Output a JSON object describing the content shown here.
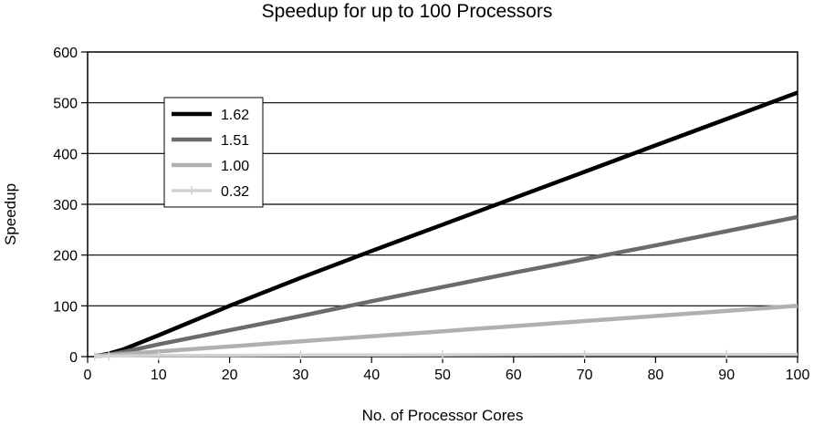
{
  "chart_data": {
    "type": "line",
    "title": "Speedup for up to 100 Processors",
    "xlabel": "No. of Processor Cores",
    "ylabel": "Speedup",
    "xlim": [
      0,
      100
    ],
    "ylim": [
      0,
      600
    ],
    "x_ticks": [
      0,
      10,
      20,
      30,
      40,
      50,
      60,
      70,
      80,
      90,
      100
    ],
    "y_ticks": [
      0,
      100,
      200,
      300,
      400,
      500,
      600
    ],
    "grid": "horizontal",
    "legend_position": "top-left",
    "x": [
      1,
      2,
      3,
      5,
      10,
      20,
      30,
      40,
      50,
      60,
      70,
      80,
      90,
      100
    ],
    "series": [
      {
        "name": "1.62",
        "color": "#000000",
        "values": [
          1,
          3,
          6,
          14,
          42,
          100,
          155,
          208,
          260,
          312,
          364,
          416,
          468,
          520
        ]
      },
      {
        "name": "1.51",
        "color": "#6b6b6b",
        "values": [
          1,
          2,
          4,
          9,
          24,
          52,
          80,
          109,
          137,
          165,
          192,
          219,
          247,
          275
        ]
      },
      {
        "name": "1.00",
        "color": "#b0b0b0",
        "values": [
          1,
          2,
          3,
          5,
          10,
          20,
          30,
          40,
          50,
          60,
          70,
          80,
          90,
          100
        ]
      },
      {
        "name": "0.32",
        "color": "#d2d2d2",
        "values": [
          1,
          1.1,
          1.2,
          1.5,
          2.0,
          2.6,
          3.0,
          3.3,
          3.5,
          3.7,
          3.9,
          4.1,
          4.2,
          4.4
        ]
      }
    ]
  }
}
